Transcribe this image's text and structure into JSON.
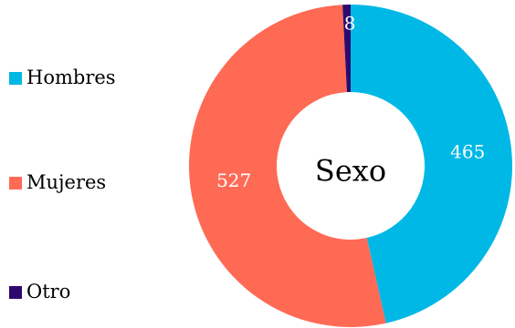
{
  "chart_data": {
    "type": "pie",
    "variant": "donut",
    "center_label": "Sexo",
    "categories": [
      "Hombres",
      "Mujeres",
      "Otro"
    ],
    "values": [
      465,
      527,
      8
    ],
    "colors": [
      "#00b8e6",
      "#ff6a55",
      "#2e0a6e"
    ],
    "data_labels": [
      "465",
      "527",
      "8"
    ],
    "legend_position": "left"
  }
}
